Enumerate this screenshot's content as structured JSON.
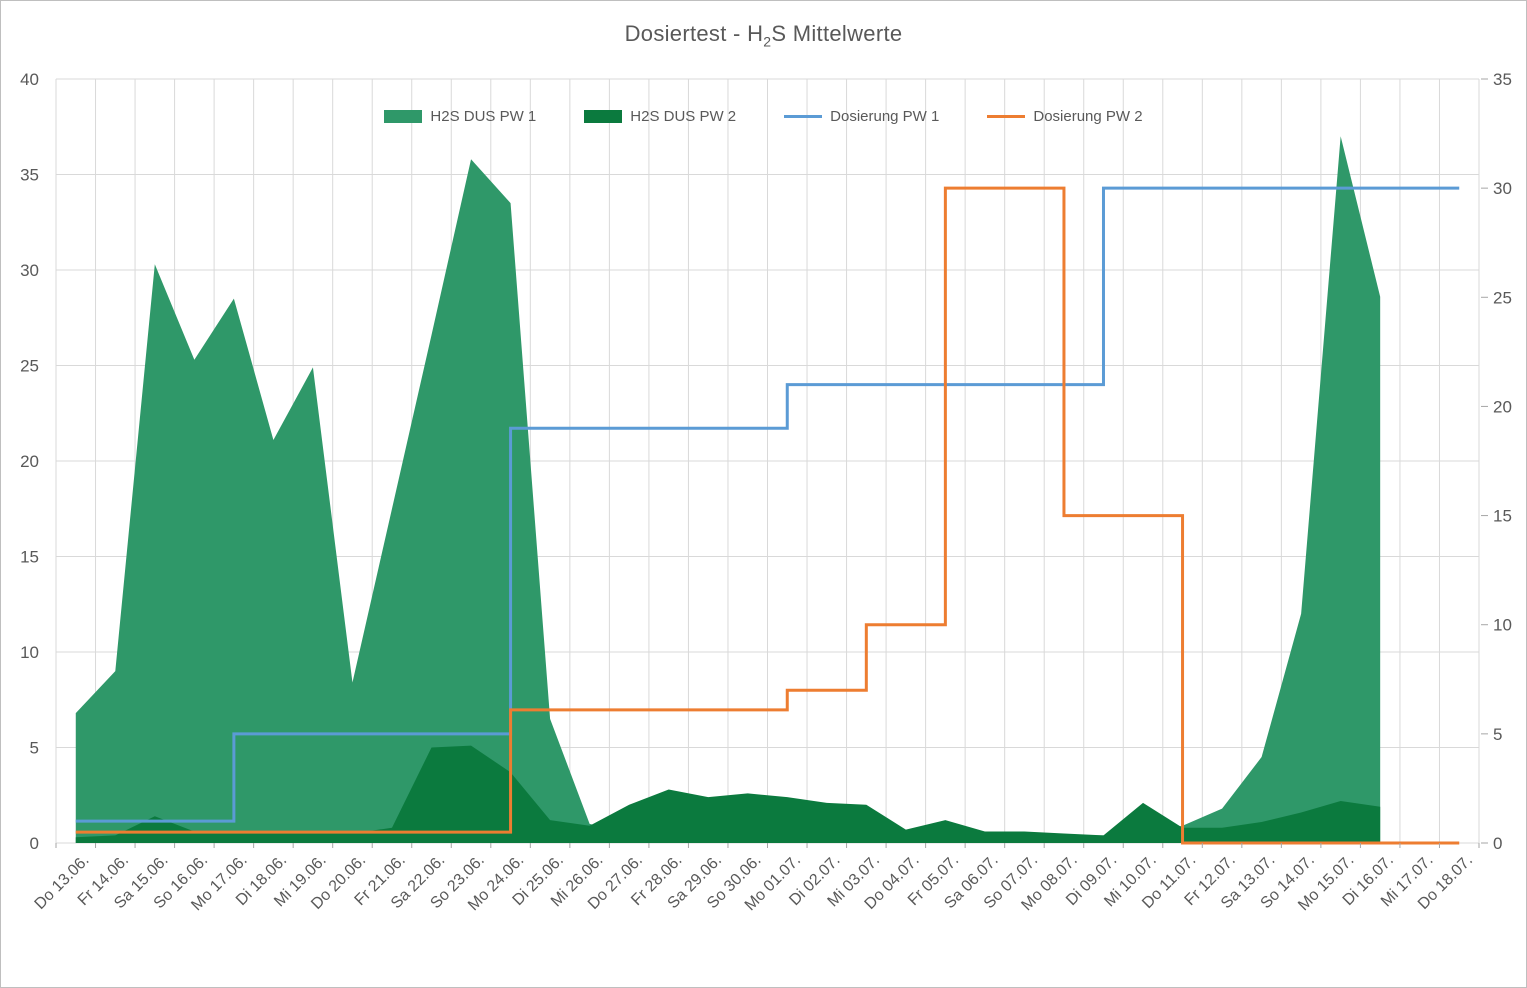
{
  "chart_data": {
    "type": "area",
    "title": "Dosiertest - H2S Mittelwerte",
    "title_parts": {
      "prefix": "Dosiertest - H",
      "sub": "2",
      "suffix": "S Mittelwerte"
    },
    "legend_position": "top",
    "grid": true,
    "categories": [
      "Do 13.06.",
      "Fr 14.06.",
      "Sa 15.06.",
      "So 16.06.",
      "Mo 17.06.",
      "Di 18.06.",
      "Mi 19.06.",
      "Do 20.06.",
      "Fr 21.06.",
      "Sa 22.06.",
      "So 23.06.",
      "Mo 24.06.",
      "Di 25.06.",
      "Mi 26.06.",
      "Do 27.06.",
      "Fr 28.06.",
      "Sa 29.06.",
      "So 30.06.",
      "Mo 01.07.",
      "Di 02.07.",
      "Mi 03.07.",
      "Do 04.07.",
      "Fr 05.07.",
      "Sa 06.07.",
      "So 07.07.",
      "Mo 08.07.",
      "Di 09.07.",
      "Mi 10.07.",
      "Do 11.07.",
      "Fr 12.07.",
      "Sa 13.07.",
      "So 14.07.",
      "Mo 15.07.",
      "Di 16.07.",
      "Mi 17.07.",
      "Do 18.07."
    ],
    "axes": {
      "left": {
        "min": 0,
        "max": 40,
        "step": 5,
        "ticks": [
          "0",
          "5",
          "10",
          "15",
          "20",
          "25",
          "30",
          "35",
          "40"
        ]
      },
      "right": {
        "min": 0,
        "max": 35,
        "step": 5,
        "ticks": [
          "0",
          "5",
          "10",
          "15",
          "20",
          "25",
          "30",
          "35"
        ]
      }
    },
    "series": [
      {
        "name": "H2S DUS PW 1",
        "type": "area",
        "axis": "left",
        "color": "#2F9869",
        "values": [
          6.8,
          9.0,
          30.3,
          25.3,
          28.5,
          21.1,
          24.9,
          8.4,
          17.5,
          26.6,
          35.8,
          33.5,
          6.5,
          1.0,
          0.5,
          0.5,
          0.5,
          0.5,
          0.5,
          0.5,
          0.4,
          0.4,
          0.4,
          0.4,
          0.4,
          0.4,
          0.4,
          0.5,
          0.9,
          1.8,
          4.5,
          12.0,
          37.0,
          28.6,
          null,
          null
        ]
      },
      {
        "name": "H2S DUS PW 2",
        "type": "area",
        "axis": "left",
        "color": "#0B7A3E",
        "values": [
          0.3,
          0.4,
          1.4,
          0.6,
          0.5,
          0.5,
          0.6,
          0.5,
          0.8,
          5.0,
          5.1,
          3.7,
          1.2,
          0.9,
          2.0,
          2.8,
          2.4,
          2.6,
          2.4,
          2.1,
          2.0,
          0.7,
          1.2,
          0.6,
          0.6,
          0.5,
          0.4,
          2.1,
          0.8,
          0.8,
          1.1,
          1.6,
          2.2,
          1.9,
          null,
          null
        ]
      },
      {
        "name": "Dosierung PW 1",
        "type": "step-line",
        "axis": "right",
        "color": "#5B9BD5",
        "values": [
          1,
          1,
          1,
          1,
          5,
          5,
          5,
          5,
          5,
          5,
          5,
          19,
          19,
          19,
          19,
          19,
          19,
          19,
          21,
          21,
          21,
          21,
          21,
          21,
          21,
          21,
          30,
          30,
          30,
          30,
          30,
          30,
          30,
          30,
          30,
          30
        ]
      },
      {
        "name": "Dosierung PW 2",
        "type": "step-line",
        "axis": "right",
        "color": "#ED7D31",
        "values": [
          0.5,
          0.5,
          0.5,
          0.5,
          0.5,
          0.5,
          0.5,
          0.5,
          0.5,
          0.5,
          0.5,
          6.1,
          6.1,
          6.1,
          6.1,
          6.1,
          6.1,
          6.1,
          7,
          7,
          10,
          10,
          30,
          30,
          30,
          15,
          15,
          15,
          0,
          0,
          0,
          0,
          0,
          0,
          0,
          0
        ]
      }
    ],
    "colors": {
      "grid": "#D9D9D9",
      "tick": "#A6A6A6",
      "text": "#595959",
      "background": "#FFFFFF",
      "border": "#BFBFBF"
    }
  }
}
